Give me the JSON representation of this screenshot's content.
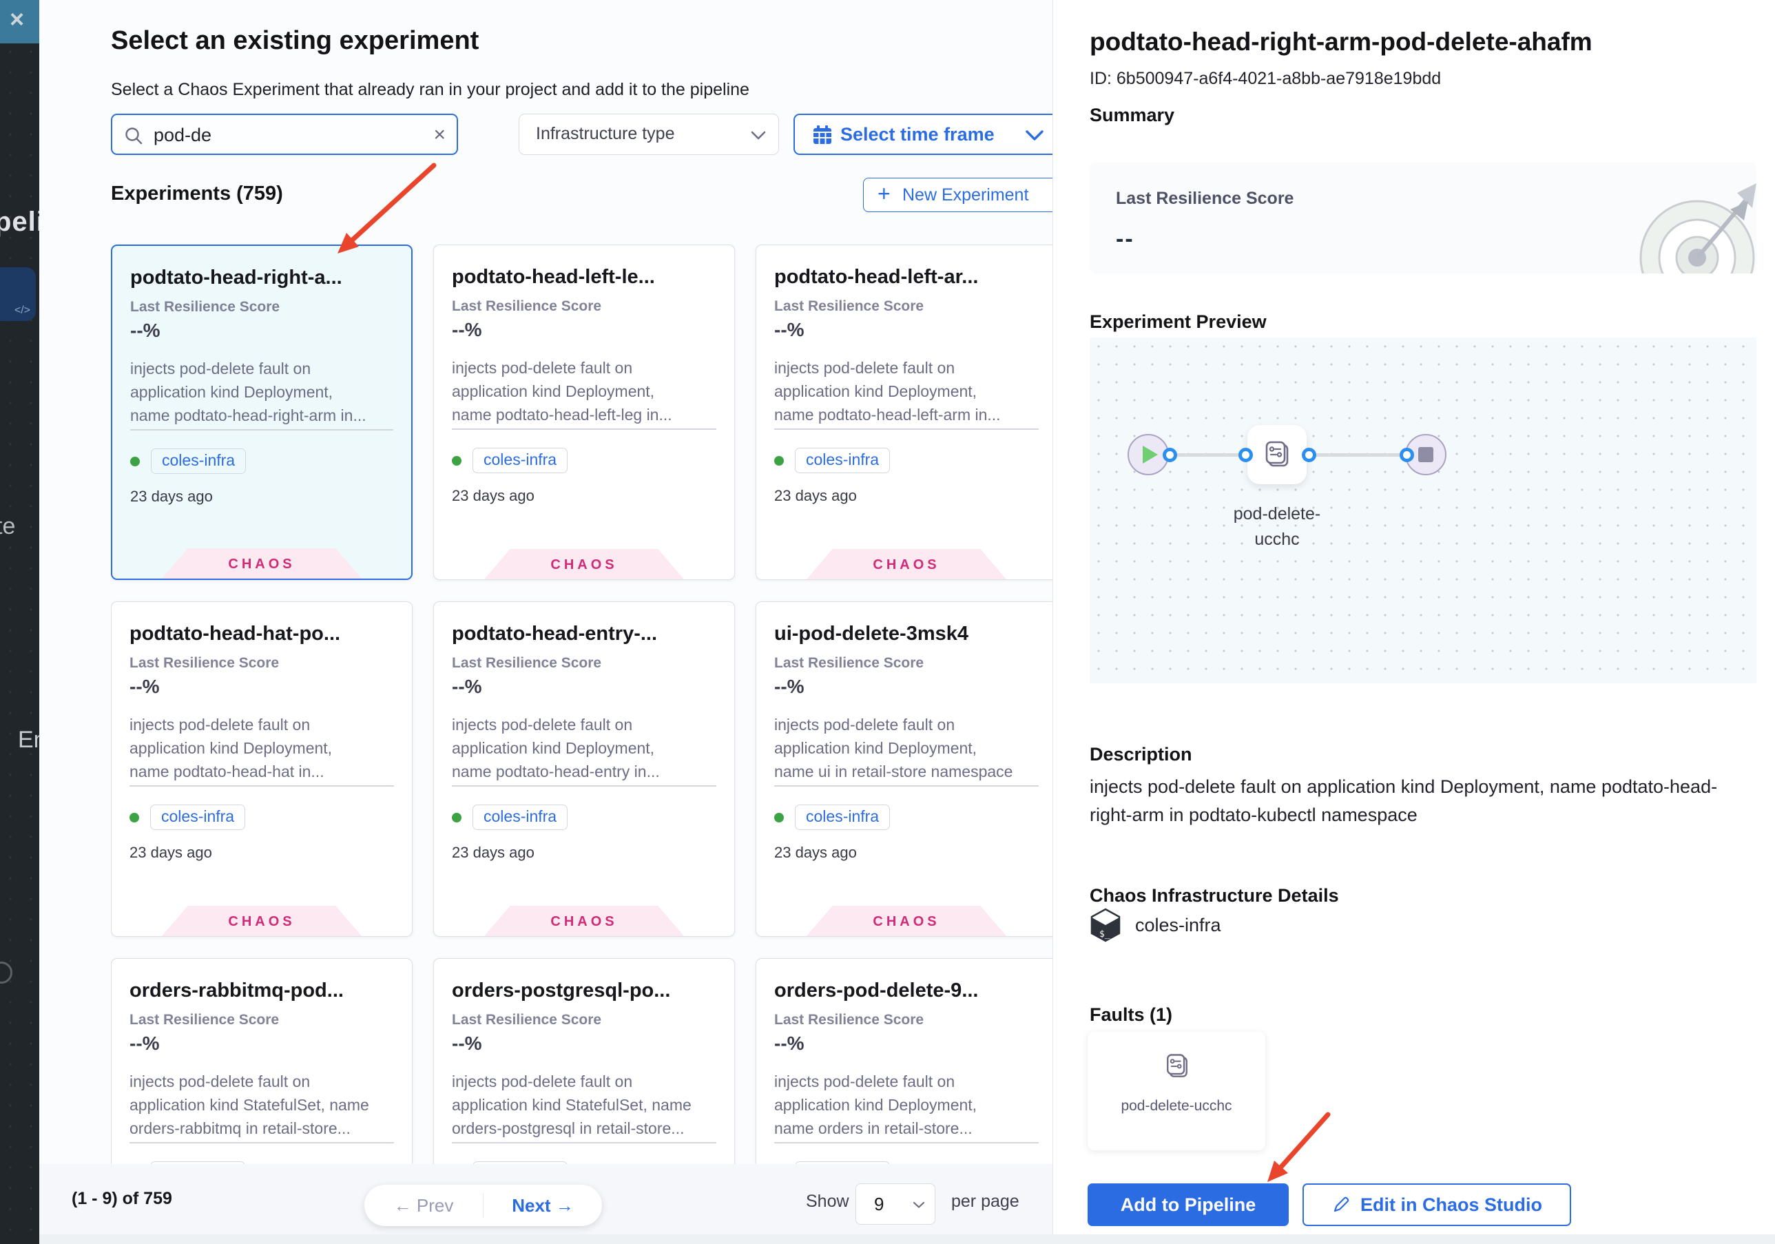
{
  "colors": {
    "primary_blue": "#2b6ce2",
    "chaos_pink_text": "#d02b74",
    "chaos_pink_bg": "#fce9f2",
    "selected_card_bg": "#eef9fb",
    "status_green": "#3da244",
    "annotation_arrow_red": "#e8452c",
    "backdrop_teal": "#3c7a9c"
  },
  "backdrop": {
    "close_label": "×",
    "fragments": {
      "pipeline": "peli",
      "code": "</>",
      "te": "te",
      "en": "En"
    }
  },
  "header": {
    "title": "Select an existing experiment",
    "subtitle": "Select a Chaos Experiment that already ran in your project and add it to the pipeline"
  },
  "filters": {
    "search_value": "pod-de",
    "search_clear": "×",
    "infra_placeholder": "Infrastructure type",
    "time_frame": "Select time frame"
  },
  "list": {
    "count_label": "Experiments (759)",
    "new_button": "New Experiment",
    "score_label": "Last Resilience Score",
    "score_value": "--%",
    "chip": "coles-infra",
    "time_ago": "23 days ago",
    "badge": "CHAOS"
  },
  "cards": [
    {
      "title": "podtato-head-right-a...",
      "selected": true,
      "desc": [
        "injects pod-delete fault on",
        "application kind Deployment,",
        "name podtato-head-right-arm in..."
      ]
    },
    {
      "title": "podtato-head-left-le...",
      "selected": false,
      "desc": [
        "injects pod-delete fault on",
        "application kind Deployment,",
        "name podtato-head-left-leg in..."
      ]
    },
    {
      "title": "podtato-head-left-ar...",
      "selected": false,
      "desc": [
        "injects pod-delete fault on",
        "application kind Deployment,",
        "name podtato-head-left-arm in..."
      ]
    },
    {
      "title": "podtato-head-hat-po...",
      "selected": false,
      "desc": [
        "injects pod-delete fault on",
        "application kind Deployment,",
        "name podtato-head-hat in..."
      ]
    },
    {
      "title": "podtato-head-entry-...",
      "selected": false,
      "desc": [
        "injects pod-delete fault on",
        "application kind Deployment,",
        "name podtato-head-entry in..."
      ]
    },
    {
      "title": "ui-pod-delete-3msk4",
      "selected": false,
      "desc": [
        "injects pod-delete fault on",
        "application kind Deployment,",
        "name ui in retail-store namespace"
      ]
    },
    {
      "title": "orders-rabbitmq-pod...",
      "selected": false,
      "desc": [
        "injects pod-delete fault on",
        "application kind StatefulSet, name",
        "orders-rabbitmq in retail-store..."
      ]
    },
    {
      "title": "orders-postgresql-po...",
      "selected": false,
      "desc": [
        "injects pod-delete fault on",
        "application kind StatefulSet, name",
        "orders-postgresql in retail-store..."
      ]
    },
    {
      "title": "orders-pod-delete-9...",
      "selected": false,
      "desc": [
        "injects pod-delete fault on",
        "application kind Deployment,",
        "name orders in retail-store..."
      ]
    }
  ],
  "pagination": {
    "range": "(1 - 9) of 759",
    "prev": "← Prev",
    "next": "Next →",
    "show": "Show",
    "size": "9",
    "per_page": "per page"
  },
  "details": {
    "title": "podtato-head-right-arm-pod-delete-ahafm",
    "id": "ID: 6b500947-a6f4-4021-a8bb-ae7918e19bdd",
    "summary_label": "Summary",
    "score_label": "Last Resilience Score",
    "score_value": "--",
    "preview_label": "Experiment Preview",
    "node_label_line1": "pod-delete-",
    "node_label_line2": "ucchc",
    "description_label": "Description",
    "description": "injects pod-delete fault on application kind Deployment, name podtato-head-right-arm in podtato-kubectl namespace",
    "infra_label": "Chaos Infrastructure Details",
    "infra_name": "coles-infra",
    "faults_label": "Faults (1)",
    "fault_name": "pod-delete-ucchc",
    "add_button": "Add to Pipeline",
    "edit_button": "Edit in Chaos Studio"
  }
}
